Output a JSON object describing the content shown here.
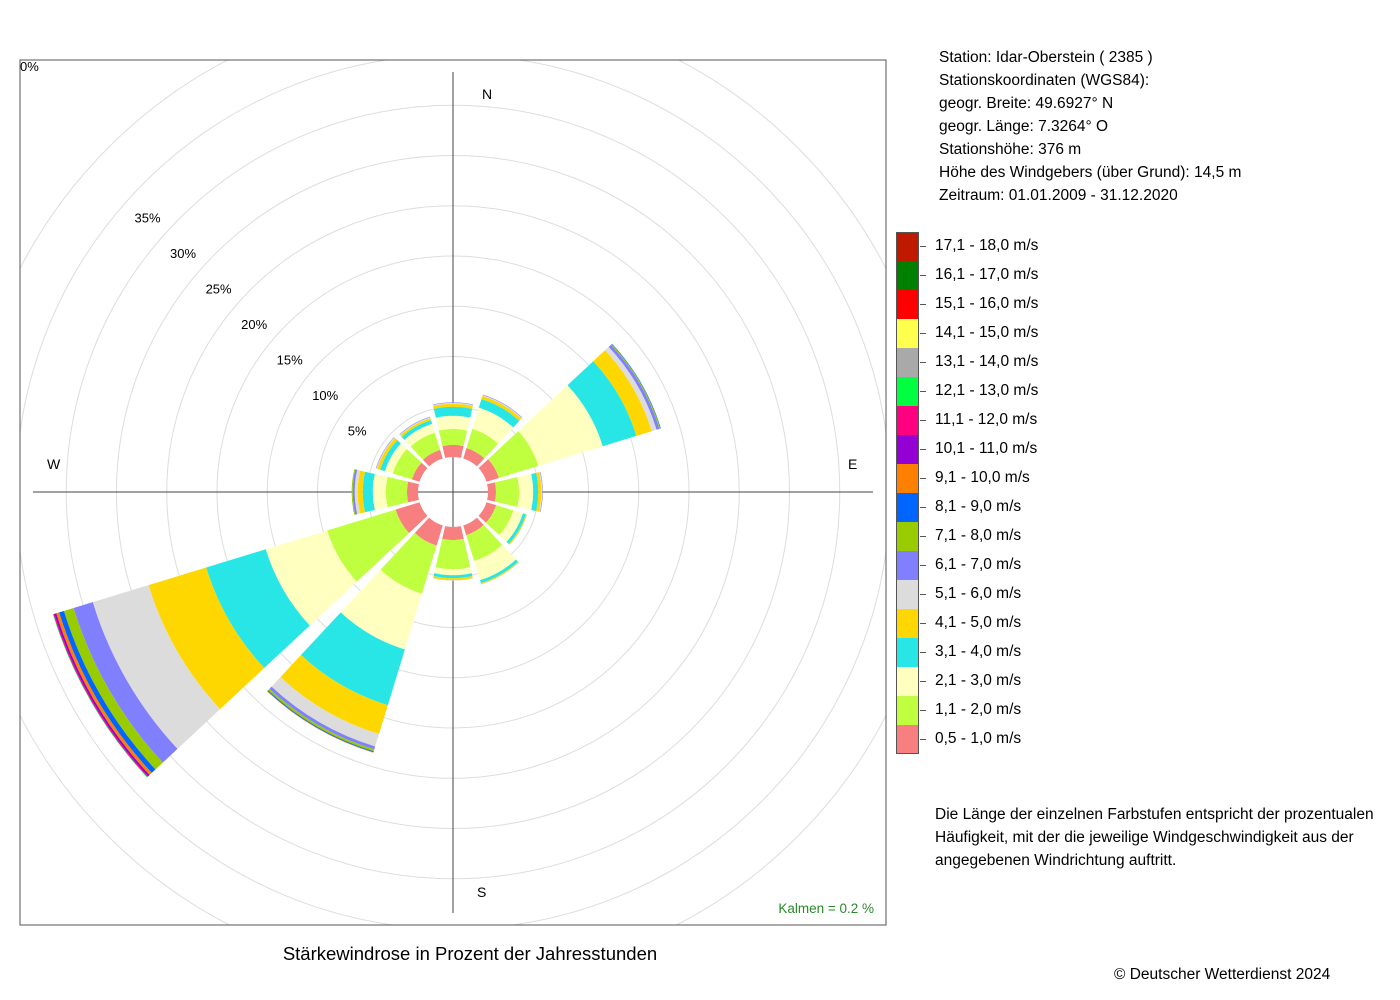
{
  "station": {
    "line_station": "Station:  Idar-Oberstein  ( 2385 )",
    "line_coords": "Stationskoordinaten (WGS84):",
    "line_lat": "geogr. Breite: 49.6927° N",
    "line_lon": "geogr. Länge:   7.3264° O",
    "line_height": "Stationshöhe: 376 m",
    "line_wind_height": "Höhe des Windgebers (über Grund): 14,5 m",
    "line_period": "Zeitraum: 01.01.2009 - 31.12.2020"
  },
  "note": "Die Länge der einzelnen Farbstufen entspricht der prozentualen Häufigkeit, mit der die jeweilige Windgeschwindigkeit aus der angegebenen Windrichtung auftritt.",
  "copyright": "© Deutscher Wetterdienst  2024",
  "chart_data": {
    "type": "polar-stacked-bar",
    "title": "Stärkewindrose in Prozent der Jahresstunden",
    "calm_label": "Kalmen  =  0.2 %",
    "radial_ticks": [
      "0%",
      "5%",
      "10%",
      "15%",
      "20%",
      "25%",
      "30%",
      "35%"
    ],
    "radial_tick_values": [
      0,
      5,
      10,
      15,
      20,
      25,
      30,
      35
    ],
    "radial_max": 40,
    "compass_labels": {
      "N": "N",
      "E": "E",
      "S": "S",
      "W": "W"
    },
    "speed_classes": [
      {
        "label": "0,5 - 1,0 m/s",
        "color": "#f87f7f"
      },
      {
        "label": "1,1 - 2,0 m/s",
        "color": "#bfff3f"
      },
      {
        "label": "2,1 - 3,0 m/s",
        "color": "#ffffbf"
      },
      {
        "label": "3,1 - 4,0 m/s",
        "color": "#29e6e6"
      },
      {
        "label": "4,1 - 5,0 m/s",
        "color": "#ffd700"
      },
      {
        "label": "5,1 - 6,0 m/s",
        "color": "#dcdcdc"
      },
      {
        "label": "6,1 - 7,0 m/s",
        "color": "#8080ff"
      },
      {
        "label": "7,1 - 8,0 m/s",
        "color": "#99cc00"
      },
      {
        "label": "8,1 - 9,0 m/s",
        "color": "#0066ff"
      },
      {
        "label": "9,1 - 10,0 m/s",
        "color": "#ff8000"
      },
      {
        "label": "10,1 - 11,0 m/s",
        "color": "#9400d3"
      },
      {
        "label": "11,1 - 12,0 m/s",
        "color": "#ff0080"
      },
      {
        "label": "12,1 - 13,0 m/s",
        "color": "#00ff40"
      },
      {
        "label": "13,1 - 14,0 m/s",
        "color": "#a9a9a9"
      },
      {
        "label": "14,1 - 15,0 m/s",
        "color": "#ffff4d"
      },
      {
        "label": "15,1 - 16,0 m/s",
        "color": "#ff0000"
      },
      {
        "label": "16,1 - 17,0 m/s",
        "color": "#008000"
      },
      {
        "label": "17,1 - 18,0 m/s",
        "color": "#bf1900"
      }
    ],
    "directions": [
      0,
      30,
      60,
      90,
      120,
      150,
      180,
      210,
      240,
      270,
      300,
      330
    ],
    "sector_width_deg": 30,
    "series": [
      {
        "direction": 0,
        "values": [
          1.2,
          1.6,
          1.3,
          0.9,
          0.3,
          0.1,
          0.05
        ]
      },
      {
        "direction": 30,
        "values": [
          1.1,
          2.0,
          2.2,
          0.9,
          0.3,
          0.1,
          0.05
        ]
      },
      {
        "direction": 60,
        "values": [
          1.3,
          4.1,
          6.7,
          3.5,
          1.6,
          0.5,
          0.3,
          0.1,
          0.05
        ]
      },
      {
        "direction": 90,
        "values": [
          0.8,
          2.3,
          1.4,
          0.5,
          0.3,
          0.1,
          0.05
        ]
      },
      {
        "direction": 120,
        "values": [
          1.0,
          1.8,
          1.0,
          0.3,
          0.1,
          0.05
        ]
      },
      {
        "direction": 150,
        "values": [
          1.0,
          2.7,
          2.0,
          0.3,
          0.1,
          0.05
        ]
      },
      {
        "direction": 180,
        "values": [
          1.3,
          2.9,
          0.6,
          0.3,
          0.2,
          0.05
        ]
      },
      {
        "direction": 210,
        "values": [
          2.1,
          5.0,
          5.8,
          5.8,
          3.0,
          1.3,
          0.3,
          0.2,
          0.1,
          0.05
        ]
      },
      {
        "direction": 240,
        "values": [
          2.5,
          7.1,
          6.4,
          6.2,
          6.0,
          5.8,
          2.0,
          1.0,
          0.5,
          0.3,
          0.2,
          0.1,
          0.05
        ]
      },
      {
        "direction": 270,
        "values": [
          1.1,
          2.1,
          1.3,
          1.0,
          0.5,
          0.3,
          0.2,
          0.1
        ]
      },
      {
        "direction": 300,
        "values": [
          0.8,
          2.0,
          0.8,
          0.5,
          0.3,
          0.1,
          0.05
        ]
      },
      {
        "direction": 330,
        "values": [
          0.9,
          1.8,
          0.9,
          0.4,
          0.2,
          0.1,
          0.05
        ]
      }
    ]
  }
}
